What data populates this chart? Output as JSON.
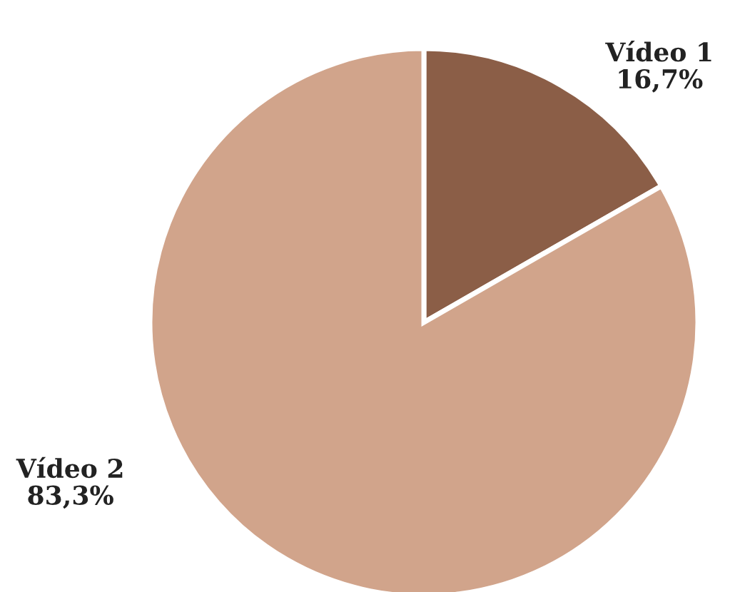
{
  "chart_data": {
    "type": "pie",
    "categories": [
      "Vídeo 1",
      "Vídeo 2"
    ],
    "values": [
      16.7,
      83.3
    ],
    "value_labels": [
      "16,7%",
      "83,3%"
    ],
    "colors": [
      "#8b5e47",
      "#d1a48b"
    ],
    "legend": false
  }
}
